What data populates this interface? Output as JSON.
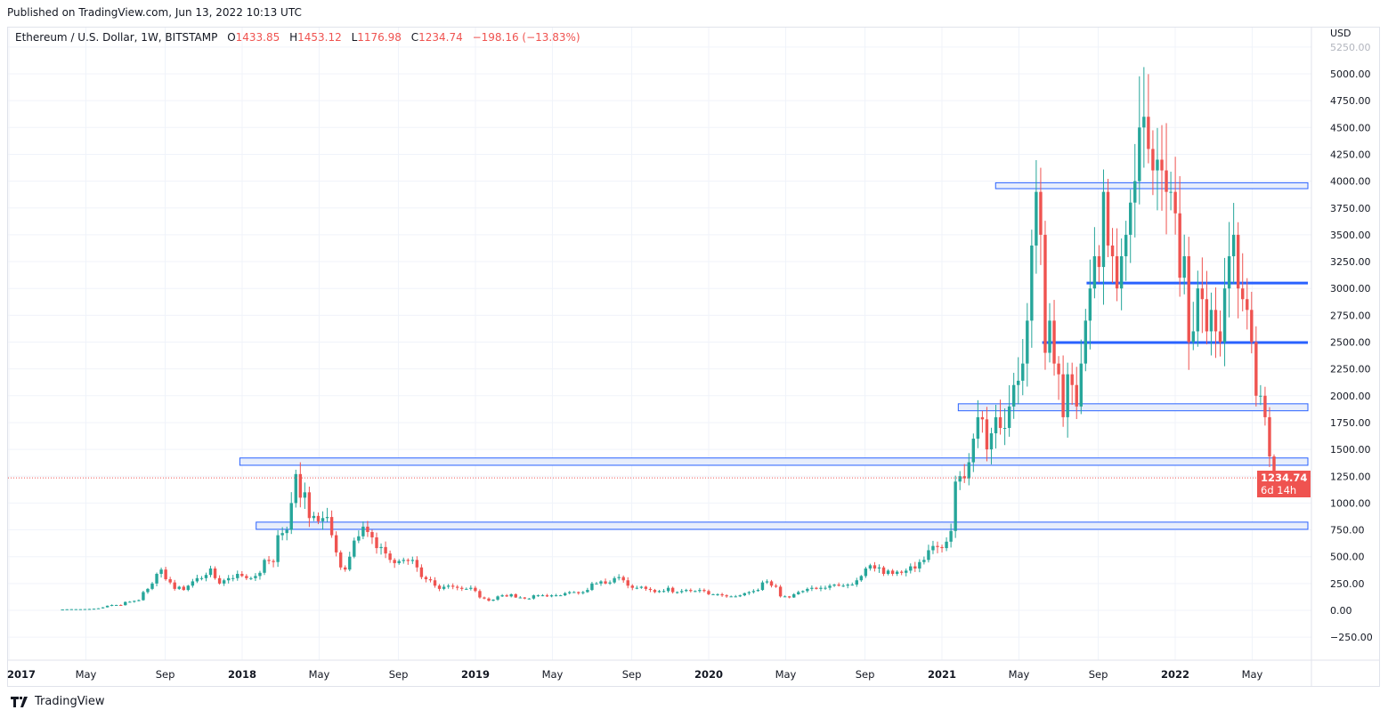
{
  "published": "Published on TradingView.com, Jun 13, 2022 10:13 UTC",
  "legend": {
    "symbol": "Ethereum / U.S. Dollar, 1W, BITSTAMP",
    "o_label": "O",
    "o": "1433.85",
    "h_label": "H",
    "h": "1453.12",
    "l_label": "L",
    "l": "1176.98",
    "c_label": "C",
    "c": "1234.74",
    "change": "−198.16 (−13.83%)"
  },
  "currency": "USD",
  "last_price": {
    "value": "1234.74",
    "countdown": "6d 14h"
  },
  "footer": {
    "brand": "TradingView"
  },
  "colors": {
    "up": "#26a69a",
    "down": "#ef5350",
    "drawing": "#2962ff",
    "zone_fill": "#e8eefb"
  },
  "chart_data": {
    "type": "candlestick",
    "title": "Ethereum / U.S. Dollar, 1W, BITSTAMP",
    "ylabel": "USD",
    "ylim": [
      -400,
      5300
    ],
    "y_ticks": [
      -250,
      0,
      250,
      500,
      750,
      1000,
      1250,
      1500,
      1750,
      2000,
      2250,
      2500,
      2750,
      3000,
      3250,
      3500,
      3750,
      4000,
      4250,
      4500,
      4750,
      5000,
      5250
    ],
    "x_ticks": [
      {
        "label": "2017",
        "t": 2017.0,
        "bold": true
      },
      {
        "label": "May",
        "t": 2017.33
      },
      {
        "label": "Sep",
        "t": 2017.67
      },
      {
        "label": "2018",
        "t": 2018.0,
        "bold": true
      },
      {
        "label": "May",
        "t": 2018.33
      },
      {
        "label": "Sep",
        "t": 2018.67
      },
      {
        "label": "2019",
        "t": 2019.0,
        "bold": true
      },
      {
        "label": "May",
        "t": 2019.33
      },
      {
        "label": "Sep",
        "t": 2019.67
      },
      {
        "label": "2020",
        "t": 2020.0,
        "bold": true
      },
      {
        "label": "May",
        "t": 2020.33
      },
      {
        "label": "Sep",
        "t": 2020.67
      },
      {
        "label": "2021",
        "t": 2021.0,
        "bold": true
      },
      {
        "label": "May",
        "t": 2021.33
      },
      {
        "label": "Sep",
        "t": 2021.67
      },
      {
        "label": "2022",
        "t": 2022.0,
        "bold": true
      },
      {
        "label": "May",
        "t": 2022.33
      }
    ],
    "last_candle": {
      "open": 1433.85,
      "high": 1453.12,
      "low": 1176.98,
      "close": 1234.74
    },
    "weekly_closes": [
      8,
      10,
      11,
      11,
      11,
      12,
      13,
      15,
      19,
      28,
      43,
      50,
      50,
      48,
      78,
      80,
      88,
      95,
      170,
      200,
      250,
      340,
      380,
      290,
      260,
      200,
      220,
      190,
      230,
      270,
      300,
      300,
      330,
      390,
      300,
      250,
      280,
      300,
      300,
      340,
      320,
      300,
      300,
      320,
      350,
      470,
      460,
      450,
      700,
      720,
      750,
      1000,
      1270,
      1050,
      1100,
      860,
      880,
      830,
      860,
      870,
      700,
      540,
      400,
      380,
      500,
      650,
      690,
      780,
      730,
      680,
      580,
      590,
      530,
      470,
      440,
      460,
      470,
      460,
      470,
      400,
      310,
      290,
      280,
      230,
      200,
      220,
      230,
      220,
      210,
      200,
      200,
      210,
      180,
      120,
      110,
      90,
      100,
      130,
      140,
      130,
      150,
      120,
      120,
      110,
      110,
      140,
      140,
      140,
      130,
      140,
      140,
      140,
      160,
      170,
      170,
      160,
      170,
      190,
      250,
      250,
      270,
      250,
      260,
      300,
      310,
      280,
      230,
      210,
      210,
      220,
      200,
      190,
      170,
      180,
      180,
      210,
      170,
      170,
      180,
      190,
      180,
      180,
      190,
      180,
      150,
      150,
      150,
      140,
      130,
      130,
      130,
      140,
      160,
      170,
      180,
      190,
      260,
      270,
      230,
      220,
      130,
      130,
      120,
      150,
      170,
      180,
      200,
      210,
      200,
      210,
      210,
      230,
      240,
      230,
      230,
      240,
      240,
      280,
      320,
      390,
      420,
      390,
      400,
      340,
      370,
      340,
      360,
      350,
      370,
      410,
      390,
      450,
      470,
      560,
      600,
      590,
      580,
      640,
      740,
      1200,
      1250,
      1230,
      1380,
      1600,
      1800,
      1780,
      1500,
      1650,
      1800,
      1700,
      1700,
      1900,
      2100,
      2140,
      2300,
      2700,
      3400,
      3900,
      3500,
      2400,
      2700,
      2300,
      2200,
      1800,
      2200,
      2100,
      1900,
      2300,
      2700,
      3000,
      3300,
      3200,
      3900,
      3400,
      3300,
      3000,
      3300,
      3500,
      3800,
      4000,
      4500,
      4600,
      4300,
      4100,
      4200,
      4100,
      3900,
      3900,
      3700,
      3100,
      3300,
      2500,
      2600,
      3000,
      2900,
      2600,
      2800,
      2600,
      2500,
      3000,
      3300,
      3500,
      3000,
      2900,
      2800,
      2500,
      2000,
      2000,
      1800,
      1433.85,
      1234.74
    ],
    "drawings": [
      {
        "type": "zone",
        "from": 2021.23,
        "price_low": 3930,
        "price_high": 3985
      },
      {
        "type": "line",
        "from": 2021.62,
        "price": 3050
      },
      {
        "type": "line",
        "from": 2021.43,
        "price": 2496
      },
      {
        "type": "zone",
        "from": 2021.07,
        "price_low": 1860,
        "price_high": 1925
      },
      {
        "type": "zone",
        "from": 2017.99,
        "price_low": 1352,
        "price_high": 1420
      },
      {
        "type": "zone",
        "from": 2018.06,
        "price_low": 755,
        "price_high": 822
      }
    ]
  }
}
